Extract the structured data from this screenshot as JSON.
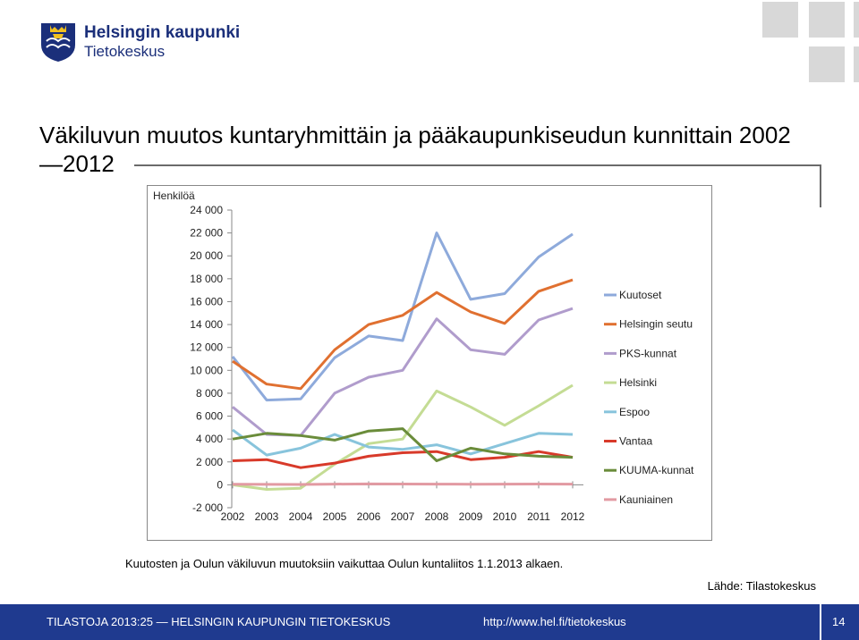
{
  "logo": {
    "line1": "Helsingin kaupunki",
    "line2": "Tietokeskus",
    "brand_color": "#1b2f7a"
  },
  "title": "Väkiluvun muutos kuntaryhmittäin ja pääkaupunkiseudun kunnittain 2002—2012",
  "note": "Kuutosten ja Oulun väkiluvun muutoksiin vaikuttaa Oulun kuntaliitos 1.1.2013 alkaen.",
  "source": "Lähde: Tilastokeskus",
  "footer": {
    "left": "TILASTOJA 2013:25 — HELSINGIN KAUPUNGIN TIETOKESKUS",
    "url": "http://www.hel.fi/tietokeskus",
    "page": "14",
    "bg_color": "#1f3a8f"
  },
  "chart_data": {
    "type": "line",
    "ylabel": "Henkilöä",
    "ylim": [
      -2000,
      24000
    ],
    "yticks": [
      -2000,
      0,
      2000,
      4000,
      6000,
      8000,
      10000,
      12000,
      14000,
      16000,
      18000,
      20000,
      22000,
      24000
    ],
    "ytick_labels": [
      "-2 000",
      "0",
      "2 000",
      "4 000",
      "6 000",
      "8 000",
      "10 000",
      "12 000",
      "14 000",
      "16 000",
      "18 000",
      "20 000",
      "22 000",
      "24 000"
    ],
    "categories": [
      "2002",
      "2003",
      "2004",
      "2005",
      "2006",
      "2007",
      "2008",
      "2009",
      "2010",
      "2011",
      "2012"
    ],
    "legend_position": "right",
    "grid": false,
    "series": [
      {
        "name": "Kuutoset",
        "color": "#8eaadb",
        "values": [
          11200,
          7400,
          7500,
          11100,
          13000,
          12600,
          22000,
          16200,
          16700,
          19900,
          21900
        ]
      },
      {
        "name": "Helsingin seutu",
        "color": "#e07030",
        "values": [
          10800,
          8800,
          8400,
          11800,
          14000,
          14800,
          16800,
          15100,
          14100,
          16900,
          17900
        ]
      },
      {
        "name": "PKS-kunnat",
        "color": "#b09ccc",
        "values": [
          6800,
          4400,
          4300,
          8000,
          9400,
          10000,
          14500,
          11800,
          11400,
          14400,
          15400
        ]
      },
      {
        "name": "Helsinki",
        "color": "#c4dc94",
        "values": [
          0,
          -400,
          -300,
          1800,
          3600,
          4000,
          8200,
          6800,
          5200,
          6900,
          8700
        ]
      },
      {
        "name": "Espoo",
        "color": "#88c4dc",
        "values": [
          4800,
          2600,
          3200,
          4400,
          3300,
          3100,
          3500,
          2700,
          3600,
          4500,
          4400
        ]
      },
      {
        "name": "Vantaa",
        "color": "#d83a2a",
        "values": [
          2100,
          2200,
          1500,
          1900,
          2500,
          2800,
          2900,
          2200,
          2400,
          2900,
          2400
        ]
      },
      {
        "name": "KUUMA-kunnat",
        "color": "#6a8c3a",
        "values": [
          4000,
          4500,
          4300,
          3900,
          4700,
          4900,
          2100,
          3200,
          2700,
          2500,
          2400
        ]
      },
      {
        "name": "Kauniainen",
        "color": "#e29aa2",
        "values": [
          50,
          40,
          30,
          60,
          80,
          70,
          60,
          50,
          60,
          70,
          60
        ]
      }
    ]
  }
}
